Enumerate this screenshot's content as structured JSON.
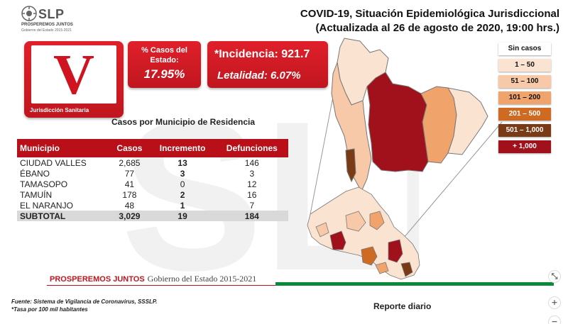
{
  "logo": {
    "word": "SLP",
    "line1": "PROSPEREMOS JUNTOS",
    "line2": "Gobierno del Estado 2015-2021"
  },
  "title": {
    "line1": "COVID-19, Situación Epidemiológica Jurisdiccional",
    "line2": "(Actualizada al 26 de agosto de 2020, 19:00 hrs.)"
  },
  "jurisdiccion": {
    "letter": "V",
    "label": "Jurisdicción Sanitaria"
  },
  "percent": {
    "label": "% Casos del Estado:",
    "value": "17.95%"
  },
  "incidencia": {
    "text": "*Incidencia: 921.7",
    "letalidad": "Letalidad: 6.07%"
  },
  "table": {
    "title": "Casos por Municipio  de Residencia",
    "headers": [
      "Municipio",
      "Casos",
      "Incremento",
      "Defunciones"
    ],
    "rows": [
      [
        "CIUDAD VALLES",
        "2,685",
        "13",
        "146"
      ],
      [
        "ÉBANO",
        "77",
        "3",
        "3"
      ],
      [
        "TAMASOPO",
        "41",
        "0",
        "12"
      ],
      [
        "TAMUÍN",
        "178",
        "2",
        "16"
      ],
      [
        "EL NARANJO",
        "48",
        "1",
        "7"
      ]
    ],
    "subtotal": [
      "SUBTOTAL",
      "3,029",
      "19",
      "184"
    ]
  },
  "legend": [
    {
      "label": "Sin casos",
      "color": "#ffffff",
      "text_color": "#111111"
    },
    {
      "label": "1 – 50",
      "color": "#fbe3d2",
      "text_color": "#111111"
    },
    {
      "label": "51 – 100",
      "color": "#f8c9a8",
      "text_color": "#111111"
    },
    {
      "label": "101 – 200",
      "color": "#f1a36c",
      "text_color": "#111111"
    },
    {
      "label": "201 – 500",
      "color": "#cf6a23",
      "text_color": "#ffffff"
    },
    {
      "label": "501 – 1,000",
      "color": "#7a3a16",
      "text_color": "#ffffff"
    },
    {
      "label": "+ 1,000",
      "color": "#a0111b",
      "text_color": "#ffffff"
    }
  ],
  "footer": {
    "brand": "PROSPEREMOS JUNTOS",
    "gobierno": "Gobierno del Estado 2015-2021",
    "fuente1": "Fuente: Sistema de Vigilancia de Coronavirus, SSSLP.",
    "fuente2": "*Tasa por 100 mil habitantes",
    "reporte": "Reporte diario"
  },
  "controls": [
    "⤡",
    "+",
    "−"
  ]
}
